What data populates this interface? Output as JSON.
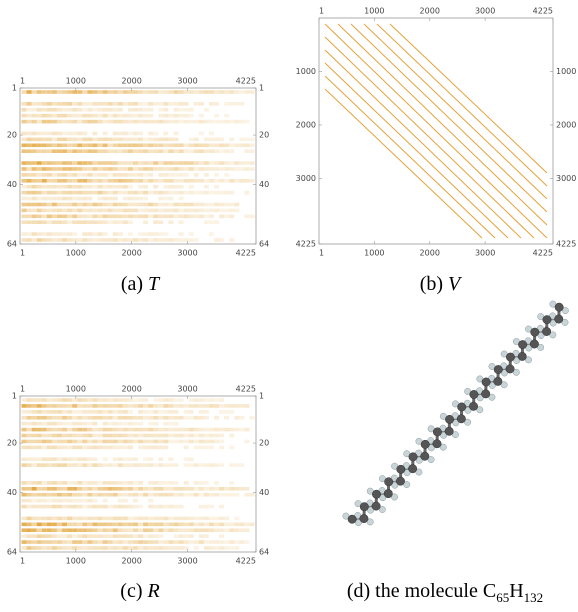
{
  "panels": [
    {
      "caption_label": "(a)",
      "caption_symbol": "T",
      "x_ticks": [
        1,
        1000,
        2000,
        3000,
        4225
      ],
      "y_ticks": [
        1,
        20,
        40,
        64
      ]
    },
    {
      "caption_label": "(b)",
      "caption_symbol": "V",
      "x_ticks": [
        1,
        1000,
        2000,
        3000,
        4225
      ],
      "y_ticks": [
        1000,
        2000,
        3000,
        4225
      ]
    },
    {
      "caption_label": "(c)",
      "caption_symbol": "R",
      "x_ticks": [
        1,
        1000,
        2000,
        3000,
        4225
      ],
      "y_ticks": [
        1,
        20,
        40,
        64
      ]
    },
    {
      "caption_parts": [
        "(d) the molecule C",
        "65",
        "H",
        "132"
      ]
    }
  ]
}
